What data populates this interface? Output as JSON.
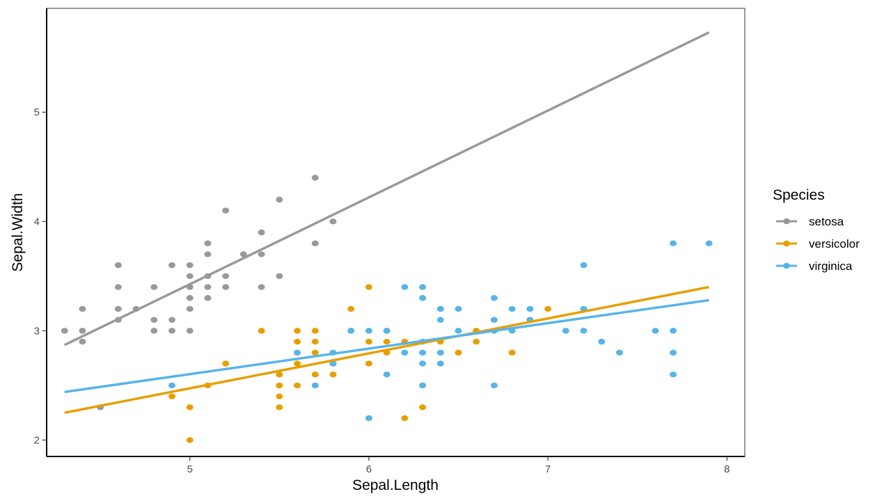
{
  "chart_data": {
    "type": "scatter",
    "xlabel": "Sepal.Length",
    "ylabel": "Sepal.Width",
    "xlim": [
      4.2,
      8.1
    ],
    "ylim": [
      1.85,
      5.95
    ],
    "x_ticks": [
      5,
      6,
      7,
      8
    ],
    "y_ticks": [
      2,
      3,
      4,
      5
    ],
    "x_tick_labels": [
      "5",
      "6",
      "7",
      "8"
    ],
    "y_tick_labels": [
      "2",
      "3",
      "4",
      "5"
    ],
    "grid": false,
    "legend": {
      "title": "Species",
      "position": "right"
    },
    "series": [
      {
        "name": "setosa",
        "color": "#999999",
        "fit_line": {
          "x": [
            4.3,
            7.9
          ],
          "y": [
            2.87,
            5.73
          ]
        },
        "points": [
          [
            4.3,
            3.0
          ],
          [
            4.4,
            3.2
          ],
          [
            4.4,
            3.0
          ],
          [
            4.4,
            2.9
          ],
          [
            4.5,
            2.3
          ],
          [
            4.6,
            3.6
          ],
          [
            4.6,
            3.4
          ],
          [
            4.6,
            3.2
          ],
          [
            4.6,
            3.1
          ],
          [
            4.7,
            3.2
          ],
          [
            4.8,
            3.4
          ],
          [
            4.8,
            3.1
          ],
          [
            4.8,
            3.0
          ],
          [
            4.9,
            3.6
          ],
          [
            4.9,
            3.1
          ],
          [
            4.9,
            3.0
          ],
          [
            5.0,
            3.6
          ],
          [
            5.0,
            3.5
          ],
          [
            5.0,
            3.4
          ],
          [
            5.0,
            3.3
          ],
          [
            5.0,
            3.2
          ],
          [
            5.0,
            3.0
          ],
          [
            5.1,
            3.8
          ],
          [
            5.1,
            3.7
          ],
          [
            5.1,
            3.5
          ],
          [
            5.1,
            3.4
          ],
          [
            5.1,
            3.3
          ],
          [
            5.2,
            4.1
          ],
          [
            5.2,
            3.5
          ],
          [
            5.2,
            3.4
          ],
          [
            5.3,
            3.7
          ],
          [
            5.4,
            3.9
          ],
          [
            5.4,
            3.7
          ],
          [
            5.4,
            3.4
          ],
          [
            5.5,
            4.2
          ],
          [
            5.5,
            3.5
          ],
          [
            5.7,
            4.4
          ],
          [
            5.7,
            3.8
          ],
          [
            5.8,
            4.0
          ]
        ]
      },
      {
        "name": "versicolor",
        "color": "#E69F00",
        "fit_line": {
          "x": [
            4.3,
            7.9
          ],
          "y": [
            2.25,
            3.4
          ]
        },
        "points": [
          [
            4.9,
            2.4
          ],
          [
            5.0,
            2.3
          ],
          [
            5.0,
            2.0
          ],
          [
            5.1,
            2.5
          ],
          [
            5.2,
            2.7
          ],
          [
            5.4,
            3.0
          ],
          [
            5.5,
            2.6
          ],
          [
            5.5,
            2.5
          ],
          [
            5.5,
            2.4
          ],
          [
            5.5,
            2.3
          ],
          [
            5.6,
            3.0
          ],
          [
            5.6,
            2.9
          ],
          [
            5.6,
            2.7
          ],
          [
            5.6,
            2.5
          ],
          [
            5.7,
            3.0
          ],
          [
            5.7,
            2.9
          ],
          [
            5.7,
            2.8
          ],
          [
            5.7,
            2.6
          ],
          [
            5.8,
            2.7
          ],
          [
            5.8,
            2.6
          ],
          [
            5.9,
            3.2
          ],
          [
            5.9,
            3.0
          ],
          [
            6.0,
            3.4
          ],
          [
            6.0,
            2.9
          ],
          [
            6.0,
            2.7
          ],
          [
            6.0,
            2.2
          ],
          [
            6.1,
            3.0
          ],
          [
            6.1,
            2.9
          ],
          [
            6.1,
            2.8
          ],
          [
            6.2,
            2.9
          ],
          [
            6.2,
            2.2
          ],
          [
            6.3,
            3.3
          ],
          [
            6.3,
            2.5
          ],
          [
            6.3,
            2.3
          ],
          [
            6.4,
            3.2
          ],
          [
            6.4,
            2.9
          ],
          [
            6.5,
            2.8
          ],
          [
            6.6,
            3.0
          ],
          [
            6.6,
            2.9
          ],
          [
            6.7,
            3.1
          ],
          [
            6.7,
            3.0
          ],
          [
            6.8,
            2.8
          ],
          [
            6.9,
            3.1
          ],
          [
            7.0,
            3.2
          ]
        ]
      },
      {
        "name": "virginica",
        "color": "#56B4E9",
        "fit_line": {
          "x": [
            4.3,
            7.9
          ],
          "y": [
            2.44,
            3.28
          ]
        },
        "points": [
          [
            4.9,
            2.5
          ],
          [
            5.6,
            2.8
          ],
          [
            5.7,
            2.5
          ],
          [
            5.8,
            2.8
          ],
          [
            5.8,
            2.7
          ],
          [
            5.9,
            3.0
          ],
          [
            6.0,
            3.0
          ],
          [
            6.0,
            2.2
          ],
          [
            6.1,
            3.0
          ],
          [
            6.1,
            2.6
          ],
          [
            6.2,
            3.4
          ],
          [
            6.2,
            2.8
          ],
          [
            6.3,
            3.4
          ],
          [
            6.3,
            3.3
          ],
          [
            6.3,
            2.9
          ],
          [
            6.3,
            2.8
          ],
          [
            6.3,
            2.7
          ],
          [
            6.3,
            2.5
          ],
          [
            6.4,
            3.2
          ],
          [
            6.4,
            3.1
          ],
          [
            6.4,
            2.8
          ],
          [
            6.4,
            2.7
          ],
          [
            6.5,
            3.2
          ],
          [
            6.5,
            3.0
          ],
          [
            6.7,
            3.3
          ],
          [
            6.7,
            3.1
          ],
          [
            6.7,
            3.0
          ],
          [
            6.7,
            2.5
          ],
          [
            6.8,
            3.2
          ],
          [
            6.8,
            3.0
          ],
          [
            6.9,
            3.2
          ],
          [
            6.9,
            3.1
          ],
          [
            7.1,
            3.0
          ],
          [
            7.2,
            3.6
          ],
          [
            7.2,
            3.2
          ],
          [
            7.2,
            3.0
          ],
          [
            7.3,
            2.9
          ],
          [
            7.4,
            2.8
          ],
          [
            7.6,
            3.0
          ],
          [
            7.7,
            3.8
          ],
          [
            7.7,
            3.0
          ],
          [
            7.7,
            2.8
          ],
          [
            7.7,
            2.6
          ],
          [
            7.9,
            3.8
          ]
        ]
      }
    ]
  }
}
